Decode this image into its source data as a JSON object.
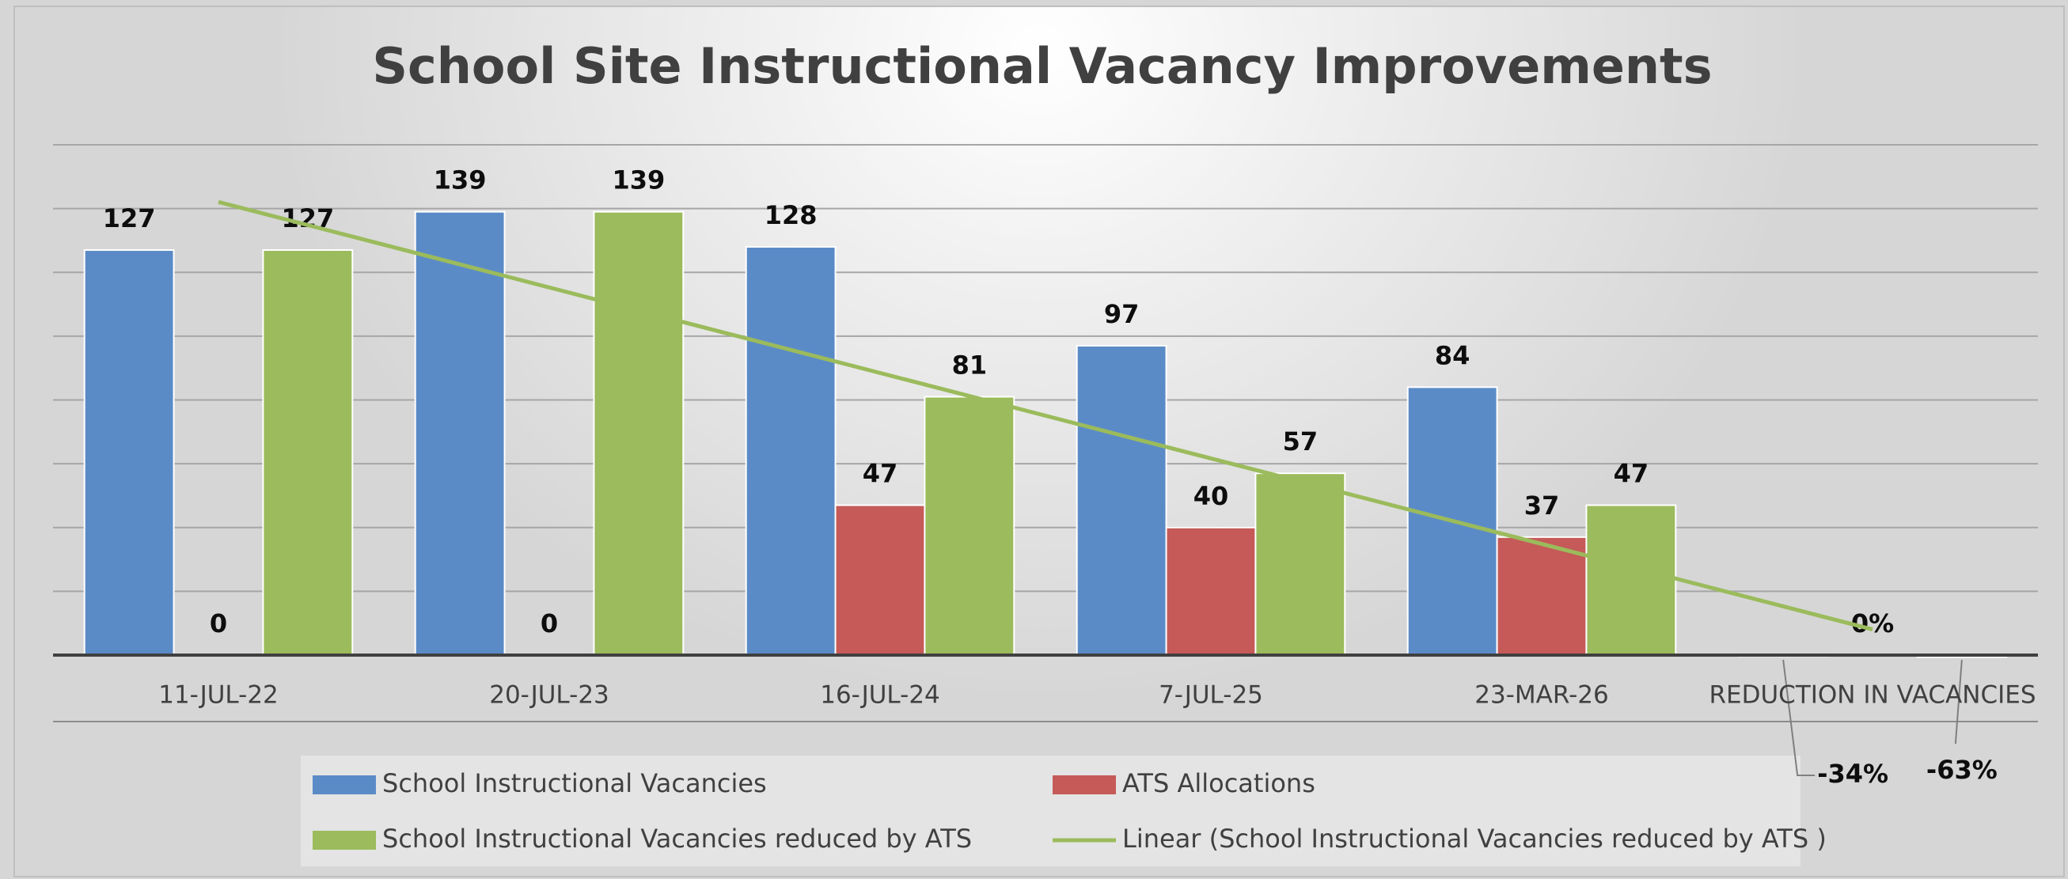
{
  "chart_data": {
    "type": "bar",
    "title": "School Site Instructional Vacancy Improvements",
    "categories": [
      "11-JUL-22",
      "20-JUL-23",
      "16-JUL-24",
      "7-JUL-25",
      "23-MAR-26",
      "REDUCTION IN VACANCIES"
    ],
    "series": [
      {
        "name": "School Instructional Vacancies",
        "color": "#5b8bc7",
        "values": [
          127,
          139,
          128,
          97,
          84,
          -0.34
        ],
        "value_labels": [
          "127",
          "139",
          "128",
          "97",
          "84",
          "-34%"
        ]
      },
      {
        "name": "ATS Allocations",
        "color": "#c55a58",
        "values": [
          0,
          0,
          47,
          40,
          37,
          0
        ],
        "value_labels": [
          "0",
          "0",
          "47",
          "40",
          "37",
          "0%"
        ]
      },
      {
        "name": "School Instructional Vacancies reduced by ATS",
        "color": "#9bbb5c",
        "values": [
          127,
          139,
          81,
          57,
          47,
          -0.63
        ],
        "value_labels": [
          "127",
          "139",
          "81",
          "57",
          "47",
          "-63%"
        ]
      }
    ],
    "trendline": {
      "name": "Linear (School Instructional Vacancies reduced by ATS )",
      "type": "linear",
      "color": "#9bbb5c"
    },
    "ylim": [
      0,
      160
    ],
    "yticks": [
      0,
      20,
      40,
      60,
      80,
      100,
      120,
      140,
      160
    ],
    "grid": true,
    "legend": "bottom"
  }
}
